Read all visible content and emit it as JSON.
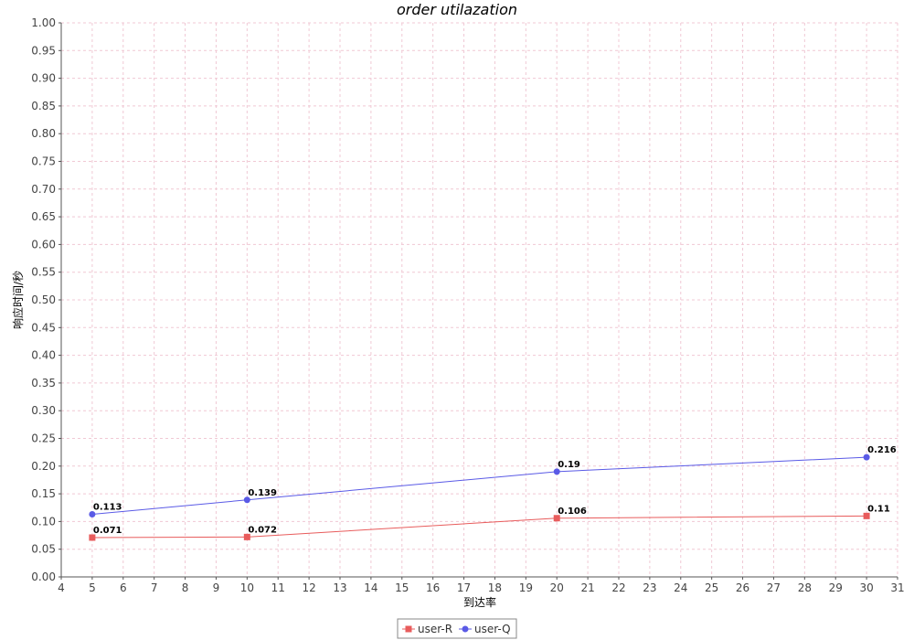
{
  "chart_data": {
    "type": "line",
    "title": "order utilazation",
    "xlabel": "到达率",
    "ylabel": "响应时间/秒",
    "xlim": [
      4,
      31
    ],
    "ylim": [
      0,
      1.0
    ],
    "x_ticks": [
      4,
      5,
      6,
      7,
      8,
      9,
      10,
      11,
      12,
      13,
      14,
      15,
      16,
      17,
      18,
      19,
      20,
      21,
      22,
      23,
      24,
      25,
      26,
      27,
      28,
      29,
      30,
      31
    ],
    "y_ticks": [
      "0.00",
      "0.05",
      "0.10",
      "0.15",
      "0.20",
      "0.25",
      "0.30",
      "0.35",
      "0.40",
      "0.45",
      "0.50",
      "0.55",
      "0.60",
      "0.65",
      "0.70",
      "0.75",
      "0.80",
      "0.85",
      "0.90",
      "0.95",
      "1.00"
    ],
    "grid": true,
    "legend_position": "bottom-center",
    "series": [
      {
        "name": "user-R",
        "color": "#e85c5c",
        "marker": "square",
        "x": [
          5,
          10,
          20,
          30
        ],
        "values": [
          0.071,
          0.072,
          0.106,
          0.11
        ],
        "labels": [
          "0.071",
          "0.072",
          "0.106",
          "0.11"
        ]
      },
      {
        "name": "user-Q",
        "color": "#5a5ae6",
        "marker": "circle",
        "x": [
          5,
          10,
          20,
          30
        ],
        "values": [
          0.113,
          0.139,
          0.19,
          0.216
        ],
        "labels": [
          "0.113",
          "0.139",
          "0.19",
          "0.216"
        ]
      }
    ]
  }
}
